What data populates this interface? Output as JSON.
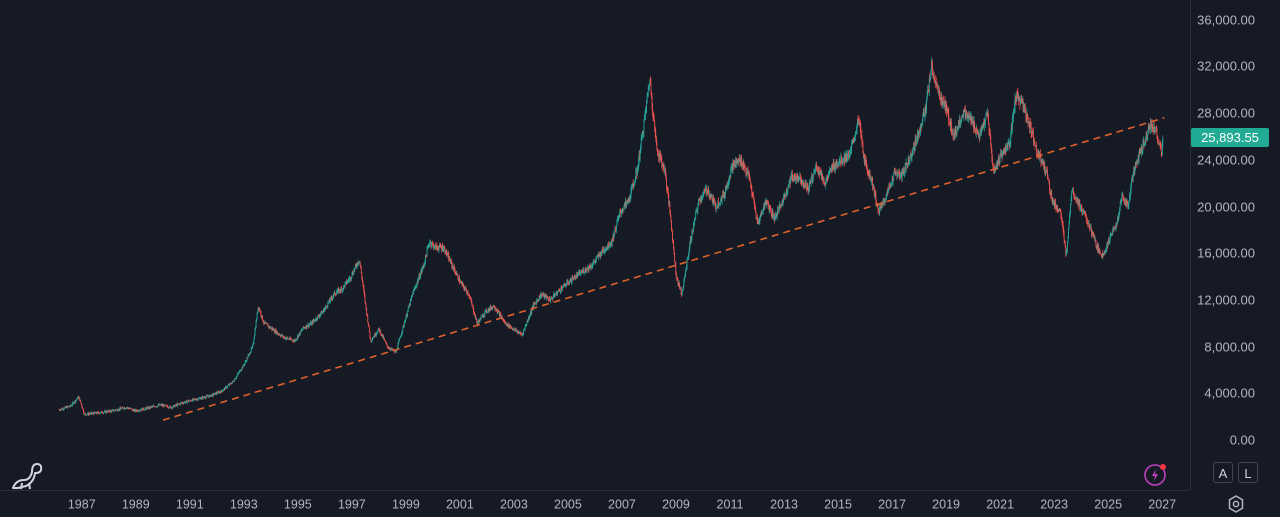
{
  "price_axis": {
    "labels": [
      "36,000.00",
      "32,000.00",
      "28,000.00",
      "24,000.00",
      "20,000.00",
      "16,000.00",
      "12,000.00",
      "8,000.00",
      "4,000.00",
      "0.00"
    ]
  },
  "time_axis": {
    "labels": [
      "1987",
      "1989",
      "1991",
      "1993",
      "1995",
      "1997",
      "1999",
      "2001",
      "2003",
      "2005",
      "2007",
      "2009",
      "2011",
      "2013",
      "2015",
      "2017",
      "2019",
      "2021",
      "2023",
      "2025",
      "2027"
    ]
  },
  "last_price": "25,893.55",
  "scale_buttons": {
    "auto": "A",
    "log": "L"
  },
  "icons": {
    "logo": "tradingview-dino-icon",
    "bolt": "lightning-bolt-icon",
    "settings": "gear-icon"
  },
  "colors": {
    "background": "#161a25",
    "up": "#26a69a",
    "down": "#ef5350",
    "trendline": "#e0612a",
    "badge": "#22ab94"
  },
  "chart_data": {
    "type": "candlestick",
    "title": "",
    "xlabel": "",
    "ylabel": "",
    "ylim": [
      0,
      38000
    ],
    "xlim": [
      1986.0,
      2027.0
    ],
    "grid": false,
    "last_value": 25893.55,
    "series": [
      {
        "points": [
          [
            1986.9,
            2600
          ],
          [
            1987.3,
            2900
          ],
          [
            1987.6,
            3700
          ],
          [
            1987.8,
            2200
          ],
          [
            1988.2,
            2300
          ],
          [
            1988.8,
            2500
          ],
          [
            1989.3,
            2800
          ],
          [
            1989.6,
            2500
          ],
          [
            1990.0,
            2700
          ],
          [
            1990.5,
            3000
          ],
          [
            1990.9,
            2800
          ],
          [
            1991.3,
            3200
          ],
          [
            1991.8,
            3500
          ],
          [
            1992.3,
            3800
          ],
          [
            1992.7,
            4200
          ],
          [
            1993.1,
            5000
          ],
          [
            1993.5,
            6500
          ],
          [
            1993.8,
            8000
          ],
          [
            1994.0,
            11500
          ],
          [
            1994.2,
            10000
          ],
          [
            1994.5,
            9500
          ],
          [
            1994.9,
            8800
          ],
          [
            1995.3,
            8500
          ],
          [
            1995.6,
            9600
          ],
          [
            1995.9,
            10000
          ],
          [
            1996.3,
            11000
          ],
          [
            1996.7,
            12500
          ],
          [
            1997.0,
            13000
          ],
          [
            1997.3,
            14000
          ],
          [
            1997.6,
            15500
          ],
          [
            1997.8,
            12000
          ],
          [
            1998.0,
            8500
          ],
          [
            1998.3,
            9500
          ],
          [
            1998.6,
            8000
          ],
          [
            1998.9,
            7500
          ],
          [
            1999.2,
            10000
          ],
          [
            1999.5,
            12500
          ],
          [
            1999.9,
            15000
          ],
          [
            2000.1,
            17000
          ],
          [
            2000.3,
            16500
          ],
          [
            2000.6,
            16500
          ],
          [
            2000.9,
            15000
          ],
          [
            2001.2,
            13500
          ],
          [
            2001.5,
            12500
          ],
          [
            2001.8,
            10000
          ],
          [
            2002.1,
            11000
          ],
          [
            2002.4,
            11500
          ],
          [
            2002.8,
            10000
          ],
          [
            2003.1,
            9500
          ],
          [
            2003.4,
            9000
          ],
          [
            2003.8,
            11500
          ],
          [
            2004.1,
            12500
          ],
          [
            2004.4,
            12000
          ],
          [
            2004.8,
            13000
          ],
          [
            2005.2,
            13800
          ],
          [
            2005.6,
            14500
          ],
          [
            2005.9,
            15000
          ],
          [
            2006.2,
            16000
          ],
          [
            2006.6,
            17000
          ],
          [
            2006.9,
            19500
          ],
          [
            2007.2,
            20500
          ],
          [
            2007.5,
            23000
          ],
          [
            2007.8,
            28000
          ],
          [
            2007.95,
            31000
          ],
          [
            2008.2,
            25000
          ],
          [
            2008.5,
            23000
          ],
          [
            2008.7,
            19000
          ],
          [
            2008.9,
            14000
          ],
          [
            2009.1,
            12500
          ],
          [
            2009.4,
            17000
          ],
          [
            2009.7,
            20500
          ],
          [
            2010.0,
            21500
          ],
          [
            2010.3,
            20000
          ],
          [
            2010.6,
            21000
          ],
          [
            2010.9,
            23500
          ],
          [
            2011.2,
            24000
          ],
          [
            2011.5,
            22500
          ],
          [
            2011.8,
            18500
          ],
          [
            2012.1,
            20500
          ],
          [
            2012.4,
            19000
          ],
          [
            2012.7,
            20500
          ],
          [
            2013.0,
            22500
          ],
          [
            2013.3,
            22500
          ],
          [
            2013.6,
            21500
          ],
          [
            2013.9,
            23500
          ],
          [
            2014.2,
            22000
          ],
          [
            2014.5,
            23500
          ],
          [
            2014.8,
            24000
          ],
          [
            2015.1,
            24500
          ],
          [
            2015.4,
            27500
          ],
          [
            2015.6,
            24000
          ],
          [
            2015.9,
            22000
          ],
          [
            2016.1,
            19500
          ],
          [
            2016.4,
            21000
          ],
          [
            2016.7,
            23000
          ],
          [
            2016.9,
            22500
          ],
          [
            2017.2,
            24000
          ],
          [
            2017.5,
            26000
          ],
          [
            2017.8,
            28500
          ],
          [
            2018.0,
            32000
          ],
          [
            2018.2,
            30000
          ],
          [
            2018.5,
            28500
          ],
          [
            2018.8,
            26000
          ],
          [
            2019.1,
            28000
          ],
          [
            2019.4,
            27500
          ],
          [
            2019.7,
            26000
          ],
          [
            2020.0,
            28000
          ],
          [
            2020.2,
            23000
          ],
          [
            2020.5,
            24500
          ],
          [
            2020.8,
            25500
          ],
          [
            2021.0,
            29500
          ],
          [
            2021.2,
            29000
          ],
          [
            2021.5,
            27000
          ],
          [
            2021.8,
            24500
          ],
          [
            2022.1,
            23000
          ],
          [
            2022.3,
            20500
          ],
          [
            2022.6,
            19500
          ],
          [
            2022.8,
            15800
          ],
          [
            2023.0,
            21500
          ],
          [
            2023.3,
            20000
          ],
          [
            2023.6,
            18500
          ],
          [
            2023.9,
            16500
          ],
          [
            2024.1,
            15800
          ],
          [
            2024.4,
            17500
          ],
          [
            2024.6,
            18500
          ],
          [
            2024.8,
            21000
          ],
          [
            2025.0,
            20000
          ],
          [
            2025.2,
            23000
          ],
          [
            2025.5,
            25000
          ],
          [
            2025.8,
            27000
          ],
          [
            2026.0,
            26500
          ],
          [
            2026.2,
            24500
          ],
          [
            2026.25,
            25893.55
          ]
        ]
      }
    ],
    "trendline": {
      "style": "dashed",
      "start": [
        1990.6,
        1700
      ],
      "end": [
        2026.3,
        27600
      ]
    }
  }
}
